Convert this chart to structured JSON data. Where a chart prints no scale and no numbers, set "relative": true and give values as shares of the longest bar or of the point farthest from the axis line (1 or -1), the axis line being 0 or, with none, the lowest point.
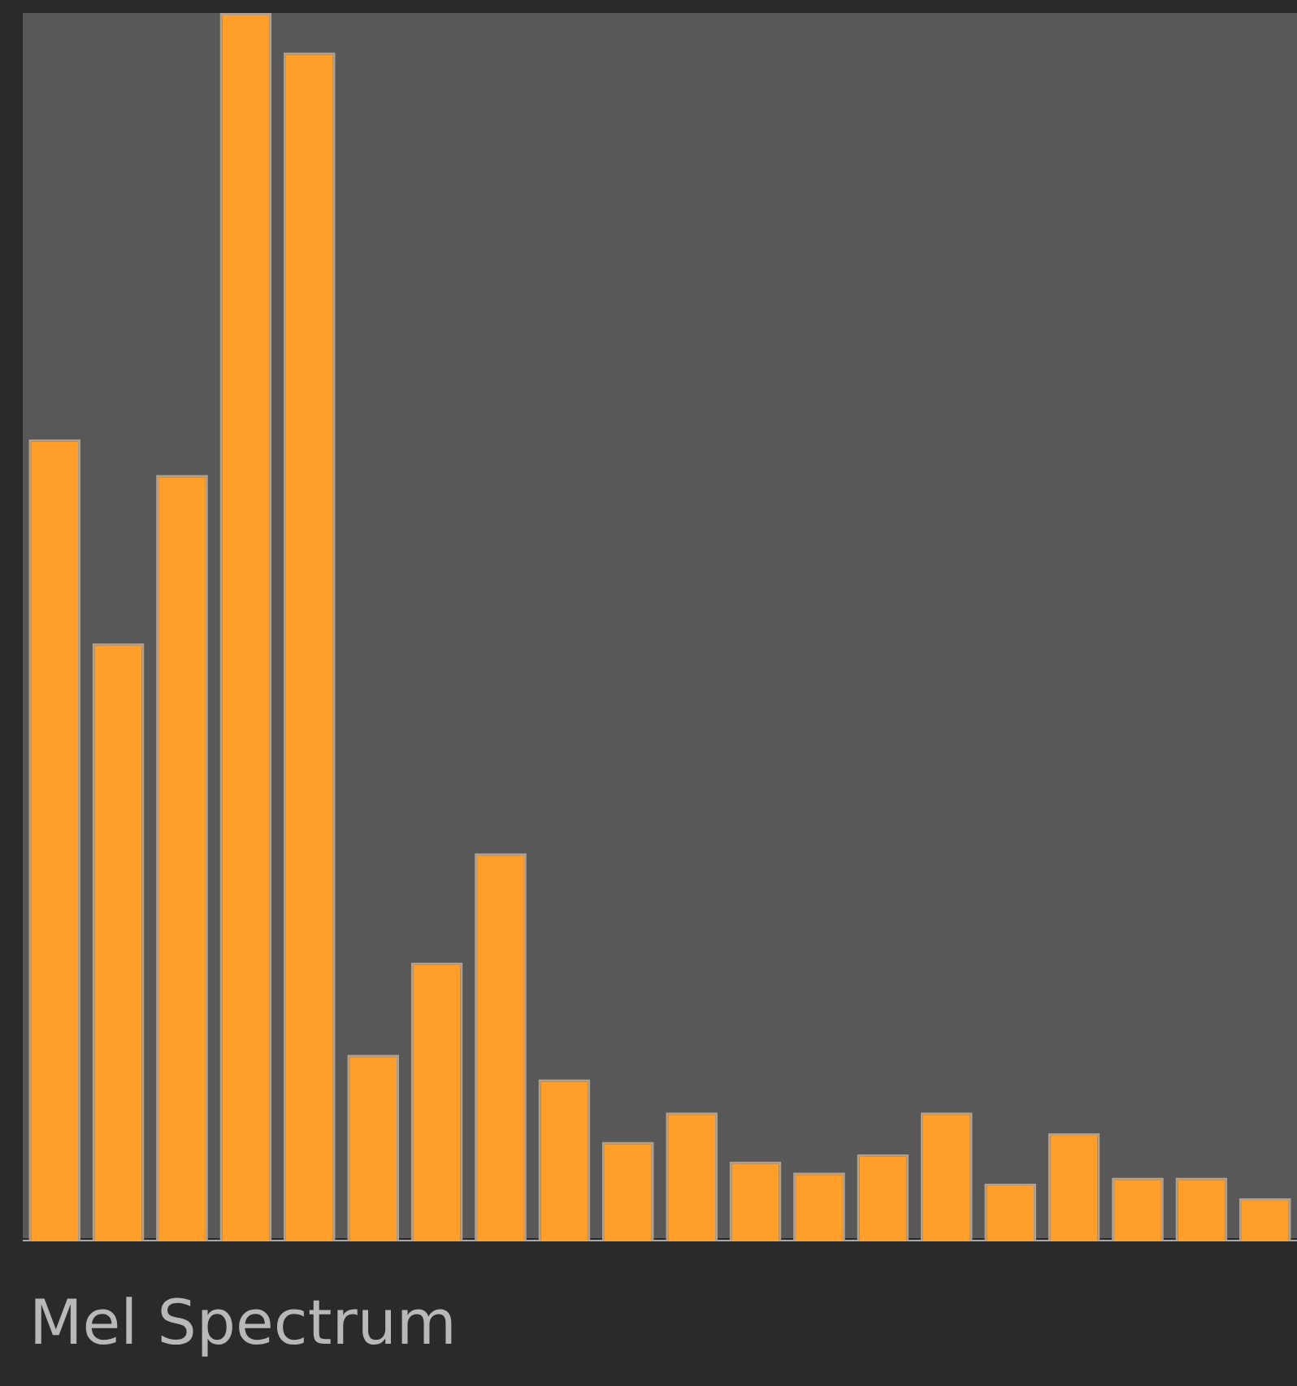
{
  "chart_data": {
    "type": "bar",
    "title": "Mel Spectrum",
    "relative": true,
    "categories": [
      null,
      null,
      null,
      null,
      null,
      null,
      null,
      null,
      null,
      null,
      null,
      null,
      null,
      null,
      null,
      null,
      null,
      null,
      null,
      null
    ],
    "values": [
      0.653,
      0.487,
      0.624,
      1,
      0.968,
      0.152,
      0.227,
      0.316,
      0.132,
      0.081,
      0.105,
      0.065,
      0.056,
      0.071,
      0.105,
      0.047,
      0.088,
      0.052,
      0.052,
      0.035
    ],
    "color": "#ff9f2a",
    "grid": false,
    "legend": false
  }
}
